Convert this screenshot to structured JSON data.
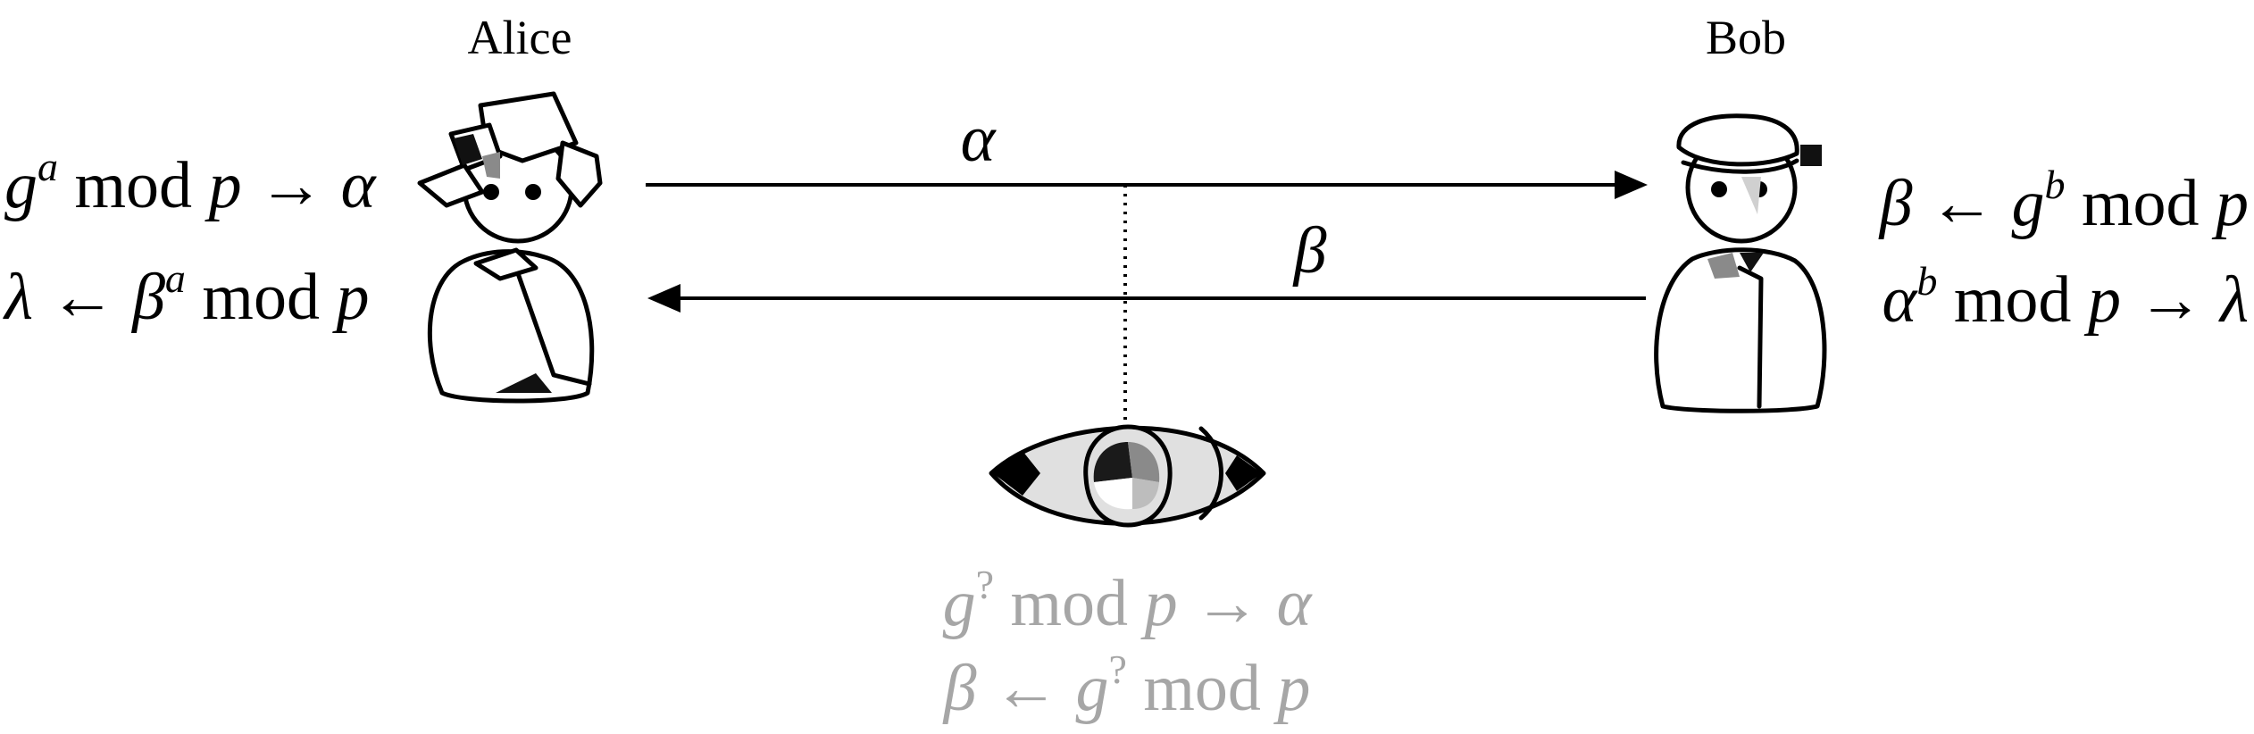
{
  "participants": {
    "alice": {
      "name": "Alice"
    },
    "bob": {
      "name": "Bob"
    }
  },
  "alice_equations": {
    "line1": {
      "base": "g",
      "exp": "a",
      "rest": " mod ",
      "mod": "p",
      "arrow": " → ",
      "result": "α"
    },
    "line2": {
      "lhs": "λ",
      "arrow": " ← ",
      "base": "β",
      "exp": "a",
      "rest": " mod ",
      "mod": "p"
    }
  },
  "bob_equations": {
    "line1": {
      "lhs": "β",
      "arrow": " ← ",
      "base": "g",
      "exp": "b",
      "rest": " mod ",
      "mod": "p"
    },
    "line2": {
      "base": "α",
      "exp": "b",
      "rest": " mod ",
      "mod": "p",
      "arrow": " → ",
      "result": "λ"
    }
  },
  "messages": {
    "alice_to_bob": "α",
    "bob_to_alice": "β"
  },
  "eavesdropper_equations": {
    "line1": {
      "base": "g",
      "exp": "?",
      "rest": " mod ",
      "mod": "p",
      "arrow": " → ",
      "result": "α"
    },
    "line2": {
      "lhs": "β",
      "arrow": " ← ",
      "base": "g",
      "exp": "?",
      "rest": " mod ",
      "mod": "p"
    }
  },
  "colors": {
    "ink": "#000000",
    "eavesdropper_text": "#a6a6a6",
    "eye_light": "#e0e0e0",
    "shade_mid": "#8a8a8a",
    "shade_dark": "#1a1a1a"
  },
  "icons": {
    "alice": "person-with-hat-icon",
    "bob": "person-with-cap-icon",
    "eavesdropper": "eye-icon"
  }
}
